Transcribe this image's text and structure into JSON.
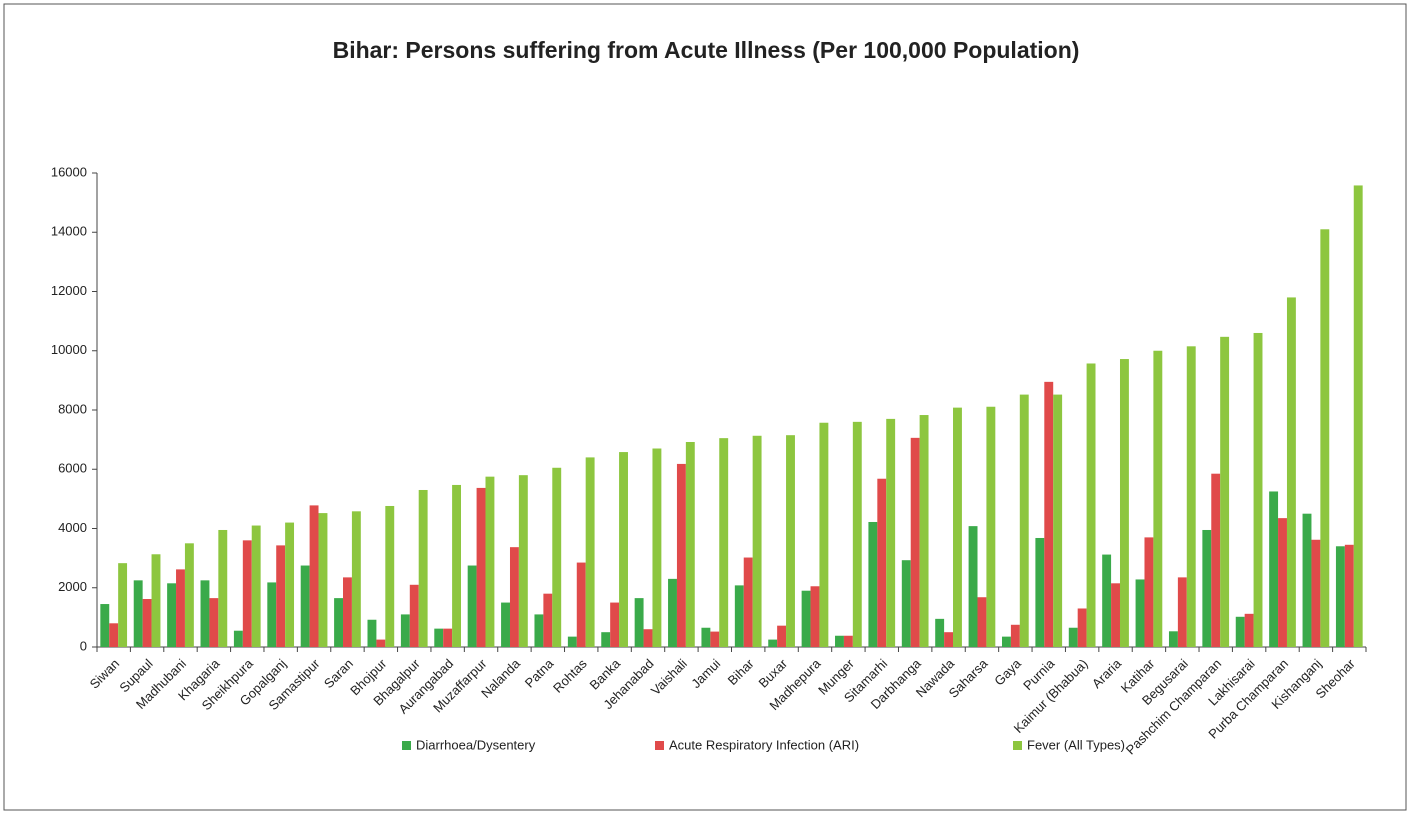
{
  "chart_data": {
    "type": "bar",
    "title": "Bihar: Persons suffering from Acute Illness (Per 100,000 Population)",
    "categories": [
      "Siwan",
      "Supaul",
      "Madhubani",
      "Khagaria",
      "Sheikhpura",
      "Gopalganj",
      "Samastipur",
      "Saran",
      "Bhojpur",
      "Bhagalpur",
      "Aurangabad",
      "Muzaffarpur",
      "Nalanda",
      "Patna",
      "Rohtas",
      "Banka",
      "Jehanabad",
      "Vaishali",
      "Jamui",
      "Bihar",
      "Buxar",
      "Madhepura",
      "Munger",
      "Sitamarhi",
      "Darbhanga",
      "Nawada",
      "Saharsa",
      "Gaya",
      "Purnia",
      "Kaimur (Bhabua)",
      "Araria",
      "Katihar",
      "Begusarai",
      "Pashchim Champaran",
      "Lakhisarai",
      "Purba Champaran",
      "Kishanganj",
      "Sheohar"
    ],
    "series": [
      {
        "name": "Diarrhoea/Dysentery",
        "color": "#3aaa4a",
        "values": [
          1450,
          2250,
          2150,
          2250,
          550,
          2180,
          2750,
          1650,
          920,
          1100,
          620,
          2750,
          1500,
          1100,
          350,
          500,
          1650,
          2300,
          650,
          2080,
          250,
          1900,
          380,
          4220,
          2930,
          950,
          4080,
          350,
          3680,
          650,
          3120,
          2280,
          530,
          3950,
          1020,
          5250,
          4500,
          3400
        ]
      },
      {
        "name": "Acute Respiratory Infection (ARI)",
        "color": "#e04a4a",
        "values": [
          800,
          1620,
          2620,
          1650,
          3600,
          3430,
          4780,
          2350,
          250,
          2100,
          620,
          5370,
          3370,
          1800,
          2850,
          1500,
          600,
          6180,
          520,
          3020,
          720,
          2050,
          380,
          5680,
          7060,
          500,
          1680,
          750,
          8950,
          1300,
          2150,
          3700,
          2350,
          5850,
          1120,
          4350,
          3620,
          3450
        ]
      },
      {
        "name": "Fever (All Types)",
        "color": "#8dc63f",
        "values": [
          2830,
          3130,
          3500,
          3950,
          4100,
          4200,
          4520,
          4580,
          4760,
          5300,
          5470,
          5750,
          5800,
          6050,
          6400,
          6580,
          6700,
          6920,
          7050,
          7130,
          7150,
          7570,
          7600,
          7700,
          7830,
          8080,
          8110,
          8520,
          8520,
          9570,
          9720,
          10000,
          10150,
          10470,
          10600,
          11800,
          14100,
          15580
        ]
      }
    ],
    "ylim": [
      0,
      16000
    ],
    "yticks": [
      0,
      2000,
      4000,
      6000,
      8000,
      10000,
      12000,
      14000,
      16000
    ],
    "grid": false,
    "legend": "bottom"
  }
}
